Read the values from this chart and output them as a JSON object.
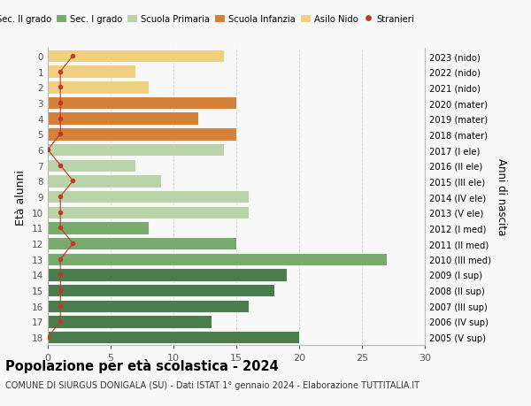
{
  "ages": [
    18,
    17,
    16,
    15,
    14,
    13,
    12,
    11,
    10,
    9,
    8,
    7,
    6,
    5,
    4,
    3,
    2,
    1,
    0
  ],
  "years": [
    "2005 (V sup)",
    "2006 (IV sup)",
    "2007 (III sup)",
    "2008 (II sup)",
    "2009 (I sup)",
    "2010 (III med)",
    "2011 (II med)",
    "2012 (I med)",
    "2013 (V ele)",
    "2014 (IV ele)",
    "2015 (III ele)",
    "2016 (II ele)",
    "2017 (I ele)",
    "2018 (mater)",
    "2019 (mater)",
    "2020 (mater)",
    "2021 (nido)",
    "2022 (nido)",
    "2023 (nido)"
  ],
  "bar_values": [
    20,
    13,
    16,
    18,
    19,
    27,
    15,
    8,
    16,
    16,
    9,
    7,
    14,
    15,
    12,
    15,
    8,
    7,
    14
  ],
  "bar_colors": [
    "#4a7c4e",
    "#4a7c4e",
    "#4a7c4e",
    "#4a7c4e",
    "#4a7c4e",
    "#7aab6e",
    "#7aab6e",
    "#7aab6e",
    "#b8d4a8",
    "#b8d4a8",
    "#b8d4a8",
    "#b8d4a8",
    "#b8d4a8",
    "#d4813a",
    "#d4813a",
    "#d4813a",
    "#f0d080",
    "#f0d080",
    "#f0d080"
  ],
  "stranieri_x": [
    0,
    1,
    1,
    1,
    1,
    1,
    2,
    1,
    1,
    1,
    2,
    1,
    0,
    1,
    1,
    1,
    1,
    1,
    2
  ],
  "legend_colors": [
    "#4a7c4e",
    "#7aab6e",
    "#b8d4a8",
    "#d4813a",
    "#f0d080",
    "#c0392b"
  ],
  "legend_labels": [
    "Sec. II grado",
    "Sec. I grado",
    "Scuola Primaria",
    "Scuola Infanzia",
    "Asilo Nido",
    "Stranieri"
  ],
  "xlim": [
    0,
    30
  ],
  "title": "Popolazione per età scolastica - 2024",
  "subtitle": "COMUNE DI SIURGUS DONIGALA (SU) - Dati ISTAT 1° gennaio 2024 - Elaborazione TUTTITALIA.IT",
  "ylabel_left": "Età alunni",
  "ylabel_right": "Anni di nascita",
  "bg_color": "#f8f8f8",
  "grid_color": "#cccccc",
  "stranieri_dot_color": "#c0392b",
  "stranieri_line_color": "#c0392b",
  "bar_edge_color": "white"
}
